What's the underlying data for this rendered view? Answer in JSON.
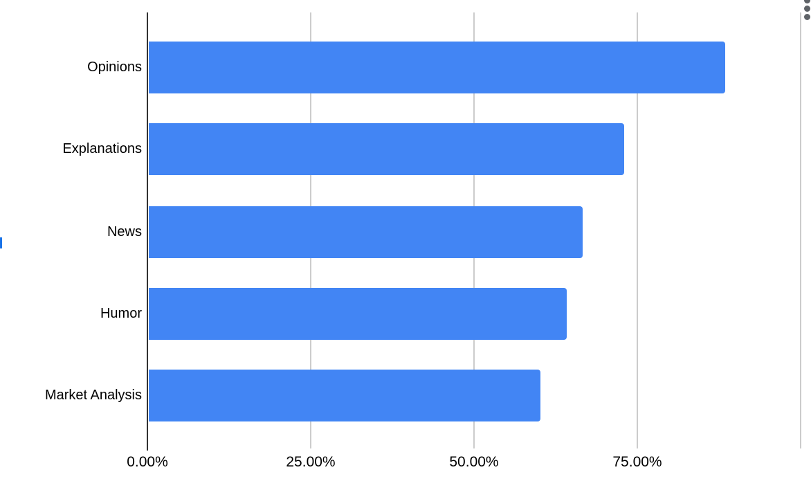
{
  "chart_data": {
    "type": "bar",
    "orientation": "horizontal",
    "title": "",
    "xlabel": "",
    "ylabel": "",
    "categories": [
      "Opinions",
      "Explanations",
      "News",
      "Humor",
      "Market Analysis"
    ],
    "values": [
      88.5,
      73.0,
      66.6,
      64.2,
      60.2
    ],
    "value_unit": "percent",
    "xlim": [
      0,
      100
    ],
    "x_ticks": [
      {
        "value": 0,
        "label": "0.00%"
      },
      {
        "value": 25,
        "label": "25.00%"
      },
      {
        "value": 50,
        "label": "50.00%"
      },
      {
        "value": 75,
        "label": "75.00%"
      },
      {
        "value": 100,
        "label": ""
      }
    ],
    "grid": true,
    "legend": false,
    "bar_color": "#4285f4",
    "axis_line_color": "#333333",
    "gridline_color": "#cccccc",
    "text_color": "#000000"
  },
  "decorations": {
    "more_options_icon": "kebab-menu-three-dots",
    "menu_dots_color": "#5f6368",
    "left_edge_accent_color": "#1a73e8",
    "background_color": "#ffffff"
  }
}
